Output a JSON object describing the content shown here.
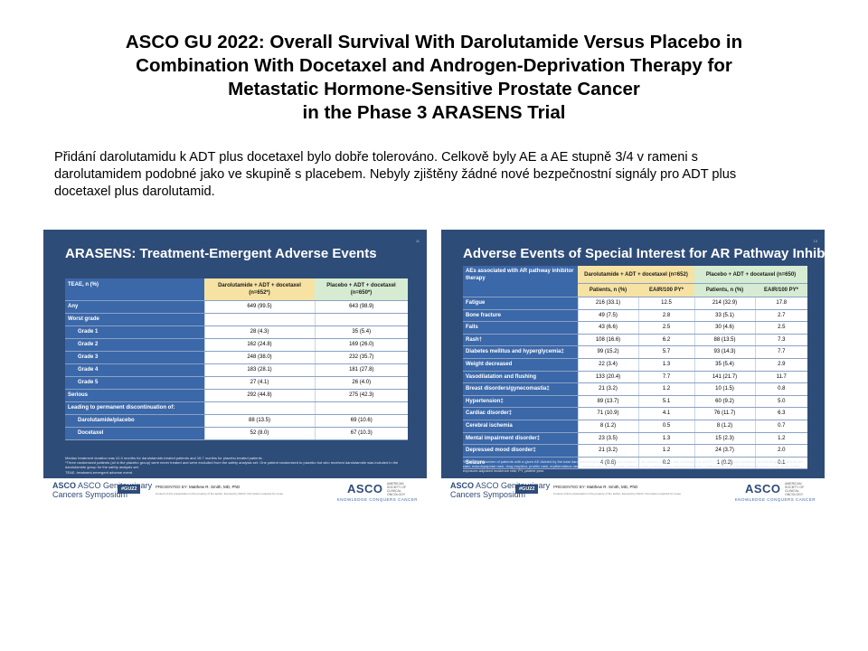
{
  "title": {
    "line1": "ASCO GU 2022: Overall Survival With Darolutamide Versus Placebo in",
    "line2": "Combination With Docetaxel and Androgen-Deprivation Therapy for",
    "line3": "Metastatic Hormone-Sensitive Prostate Cancer",
    "line4": "in the Phase 3 ARASENS Trial"
  },
  "description": "Přidání darolutamidu k ADT plus docetaxel bylo dobře tolerováno.  Celkově byly AE a AE stupně 3/4 v rameni s darolutamidem podobné jako ve skupině s placebem. Nebyly zjištěny žádné nové bezpečnostní signály pro ADT plus docetaxel plus darolutamid.",
  "slide1": {
    "title": "ARASENS: Treatment-Emergent Adverse Events",
    "slide_number": "11",
    "header": {
      "label": "TEAE, n (%)",
      "col1": "Darolutamide + ADT + docetaxel (n=652*)",
      "col2": "Placebo + ADT + docetaxel (n=650*)"
    },
    "rows": [
      {
        "label": "Any",
        "v1": "649 (99.5)",
        "v2": "643 (98.9)"
      },
      {
        "label": "Worst grade",
        "v1": "",
        "v2": ""
      },
      {
        "label": "Grade 1",
        "v1": "28 (4.3)",
        "v2": "35 (5.4)"
      },
      {
        "label": "Grade 2",
        "v1": "162 (24.8)",
        "v2": "169 (26.0)"
      },
      {
        "label": "Grade 3",
        "v1": "248 (38.0)",
        "v2": "232 (35.7)"
      },
      {
        "label": "Grade 4",
        "v1": "183 (28.1)",
        "v2": "181 (27.8)"
      },
      {
        "label": "Grade 5",
        "v1": "27 (4.1)",
        "v2": "26 (4.0)"
      },
      {
        "label": "Serious",
        "v1": "292 (44.8)",
        "v2": "275 (42.3)"
      },
      {
        "label": "Leading to permanent discontinuation of:",
        "v1": "",
        "v2": ""
      },
      {
        "label": "Darolutamide/placebo",
        "v1": "88 (13.5)",
        "v2": "69 (10.6)"
      },
      {
        "label": "Docetaxel",
        "v1": "52 (8.0)",
        "v2": "67 (10.3)"
      }
    ],
    "footnote1": "Median treatment duration was 41.0 months for darolutamide-treated patients and 16.7 months for placebo-treated patients.",
    "footnote2": "*Three randomized patients (all in the placebo group) were never treated and were excluded from the safety analysis set. One patient randomized to placebo but who received darolutamide was included in the darolutamide group for the safety analysis set.",
    "footnote3": "TEAE, treatment-emergent adverse event."
  },
  "slide2": {
    "title": "Adverse Events of Special Interest for AR Pathway Inhibitors",
    "slide_number": "13",
    "header": {
      "label": "AEs associated with AR pathway inhibitor therapy",
      "group1": "Darolutamide + ADT + docetaxel (n=652)",
      "group2": "Placebo + ADT + docetaxel (n=650)",
      "sub_patients": "Patients, n (%)",
      "sub_eair": "EAIR/100 PY*"
    },
    "rows": [
      {
        "label": "Fatigue",
        "a": "216 (33.1)",
        "b": "12.5",
        "c": "214 (32.9)",
        "d": "17.8"
      },
      {
        "label": "Bone fracture",
        "a": "49 (7.5)",
        "b": "2.8",
        "c": "33 (5.1)",
        "d": "2.7"
      },
      {
        "label": "Falls",
        "a": "43 (6.6)",
        "b": "2.5",
        "c": "30 (4.6)",
        "d": "2.5"
      },
      {
        "label": "Rash†",
        "a": "108 (16.6)",
        "b": "6.2",
        "c": "88 (13.5)",
        "d": "7.3"
      },
      {
        "label": "Diabetes mellitus and hyperglycemia‡",
        "a": "99 (15.2)",
        "b": "5.7",
        "c": "93 (14.3)",
        "d": "7.7"
      },
      {
        "label": "Weight decreased",
        "a": "22 (3.4)",
        "b": "1.3",
        "c": "35 (5.4)",
        "d": "2.9"
      },
      {
        "label": "Vasodilatation and flushing",
        "a": "133 (20.4)",
        "b": "7.7",
        "c": "141 (21.7)",
        "d": "11.7"
      },
      {
        "label": "Breast disorders/gynecomastia‡",
        "a": "21 (3.2)",
        "b": "1.2",
        "c": "10 (1.5)",
        "d": "0.8"
      },
      {
        "label": "Hypertension‡",
        "a": "89 (13.7)",
        "b": "5.1",
        "c": "60 (9.2)",
        "d": "5.0"
      },
      {
        "label": "Cardiac disorder‡",
        "a": "71 (10.9)",
        "b": "4.1",
        "c": "76 (11.7)",
        "d": "6.3"
      },
      {
        "label": "Cerebral ischemia",
        "a": "8 (1.2)",
        "b": "0.5",
        "c": "8 (1.2)",
        "d": "0.7"
      },
      {
        "label": "Mental impairment disorder‡",
        "a": "23 (3.5)",
        "b": "1.3",
        "c": "15 (2.3)",
        "d": "1.2"
      },
      {
        "label": "Depressed mood disorder‡",
        "a": "21 (3.2)",
        "b": "1.2",
        "c": "24 (3.7)",
        "d": "2.0"
      },
      {
        "label": "Seizure",
        "a": "4 (0.6)",
        "b": "0.2",
        "c": "1 (0.2)",
        "d": "0.1"
      }
    ],
    "footnote1": "*EAIR is the number of patients with a given AE divided by the total darolutamide/placebo treatment duration of all patients in years and expressed in 100 PY. †This category combines the following MedDRA terms: rash, maculopapular rash, drug eruption, pruritic rash, erythematous rash, macular rash, papular rash, follicular rash, pustular rash, and vesicular rash. ‡This category is a MedDRA High-Level Group Term. EAIR, exposure-adjusted incidence rate; PY, patient year."
  },
  "footer": {
    "asco_gu_line1": "ASCO Genitourinary",
    "asco_gu_line2": "Cancers Symposium",
    "hashtag": "#GU22",
    "presented_by": "PRESENTED BY:",
    "presenter": "Matthew R. Smith, MD, PhD",
    "content_note": "Content of this presentation is the property of the author, licensed by ASCO. Permission required for reuse.",
    "asco": "ASCO",
    "asco_small": "AMERICAN SOCIETY OF CLINICAL ONCOLOGY",
    "knowledge": "KNOWLEDGE CONQUERS CANCER"
  }
}
